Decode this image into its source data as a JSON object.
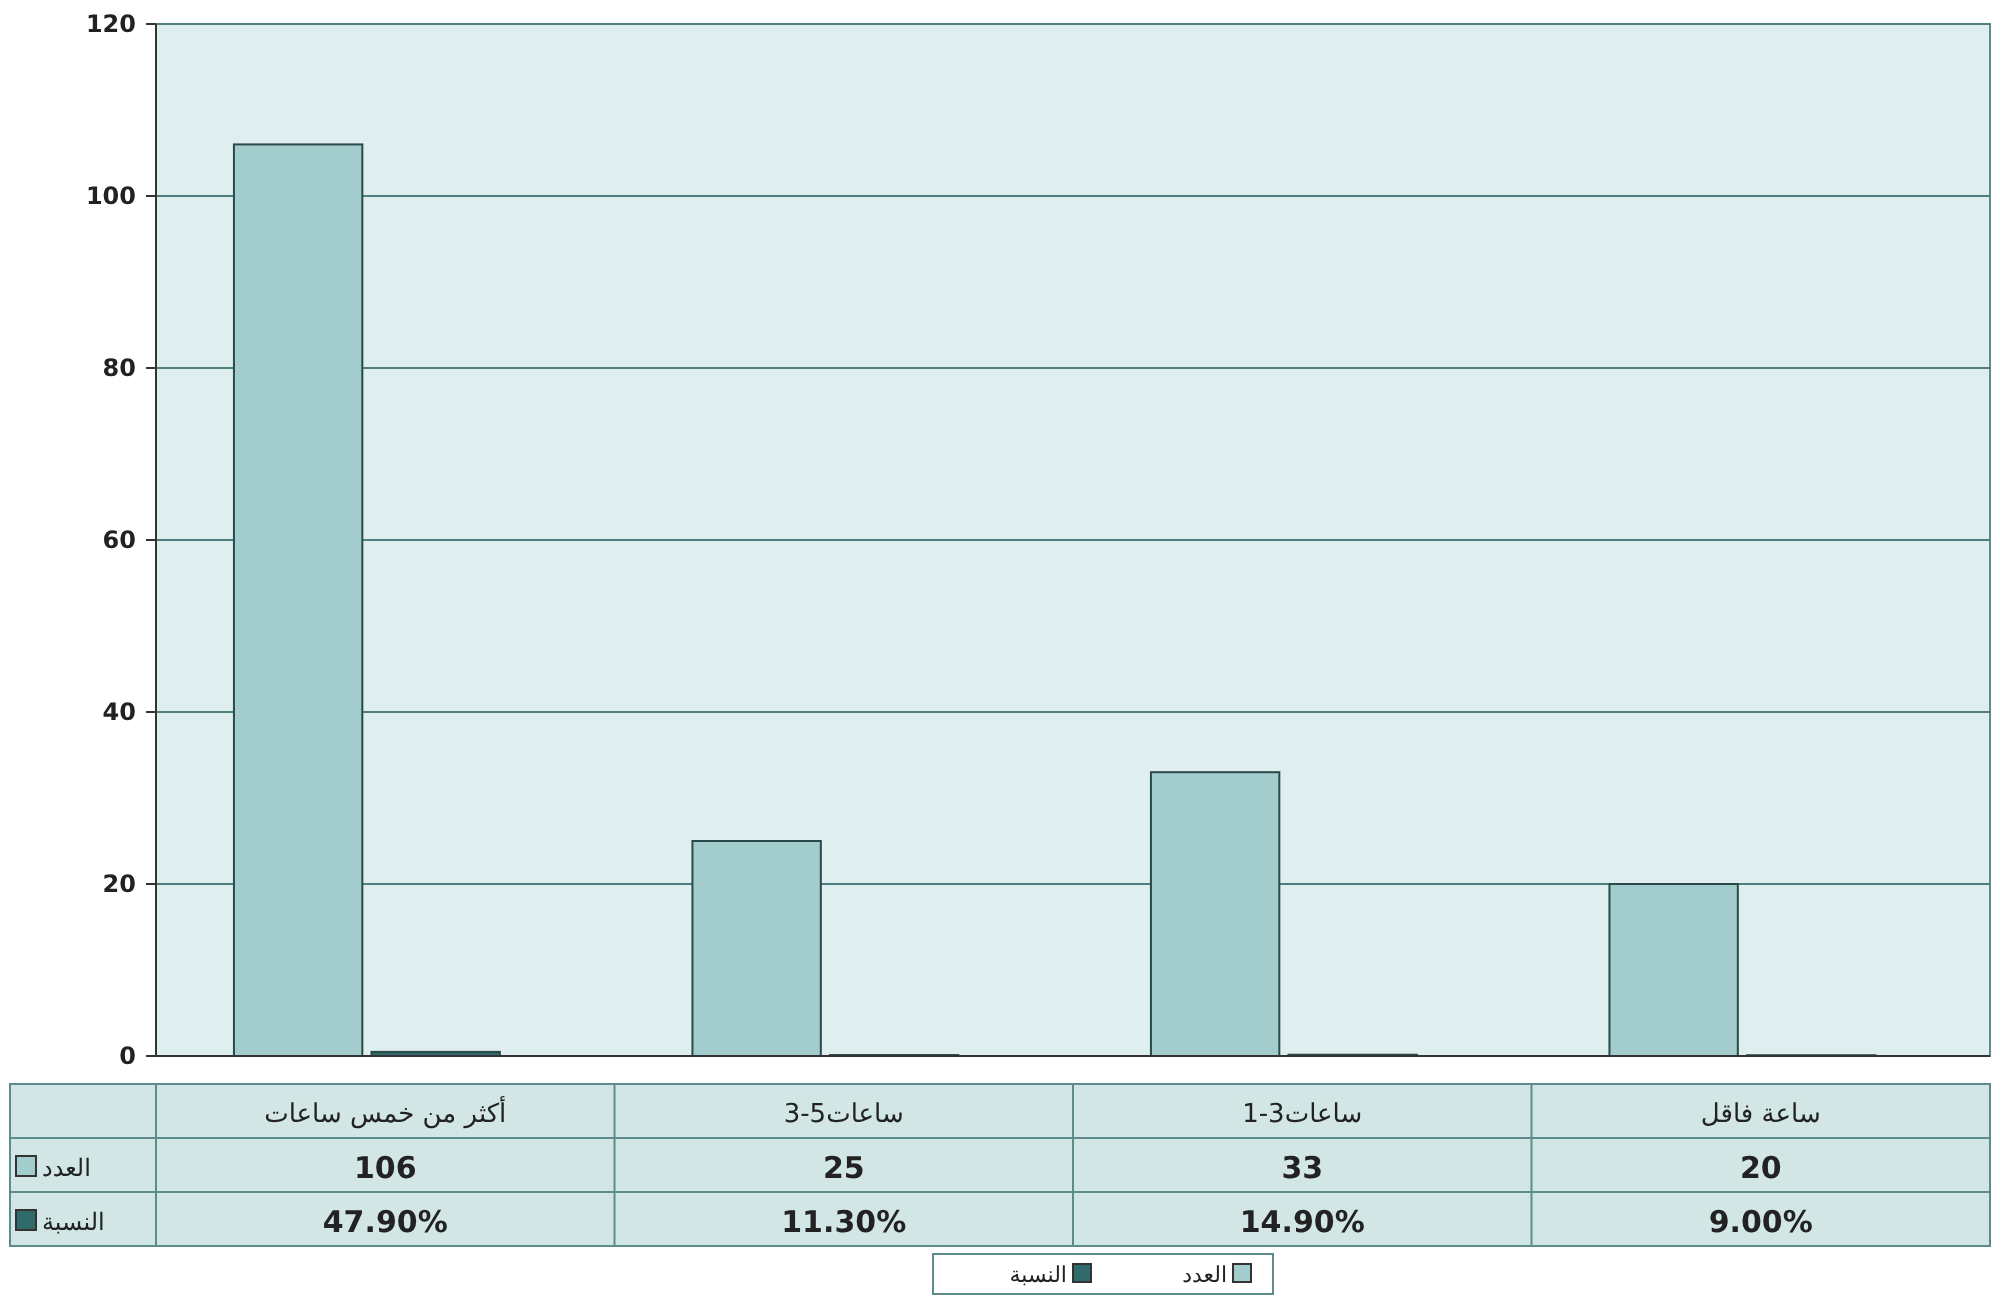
{
  "chart_data": {
    "type": "bar",
    "categories": [
      "أكثر من خمس ساعات",
      "3-5ساعات",
      "1-3ساعات",
      "ساعة فاقل"
    ],
    "series": [
      {
        "name": "العدد",
        "color": "#a3cccc",
        "values": [
          106,
          25,
          33,
          20
        ],
        "value_labels": [
          "106",
          "25",
          "33",
          "20"
        ]
      },
      {
        "name": "النسبة",
        "color": "#2f6b6b",
        "values": [
          0.479,
          0.113,
          0.149,
          0.09
        ],
        "value_labels": [
          "47.90%",
          "11.30%",
          "14.90%",
          "9.00%"
        ]
      }
    ],
    "ylim": [
      0,
      120
    ],
    "yticks": [
      0,
      20,
      40,
      60,
      80,
      100,
      120
    ],
    "grid": "y",
    "legend": "bottom"
  }
}
